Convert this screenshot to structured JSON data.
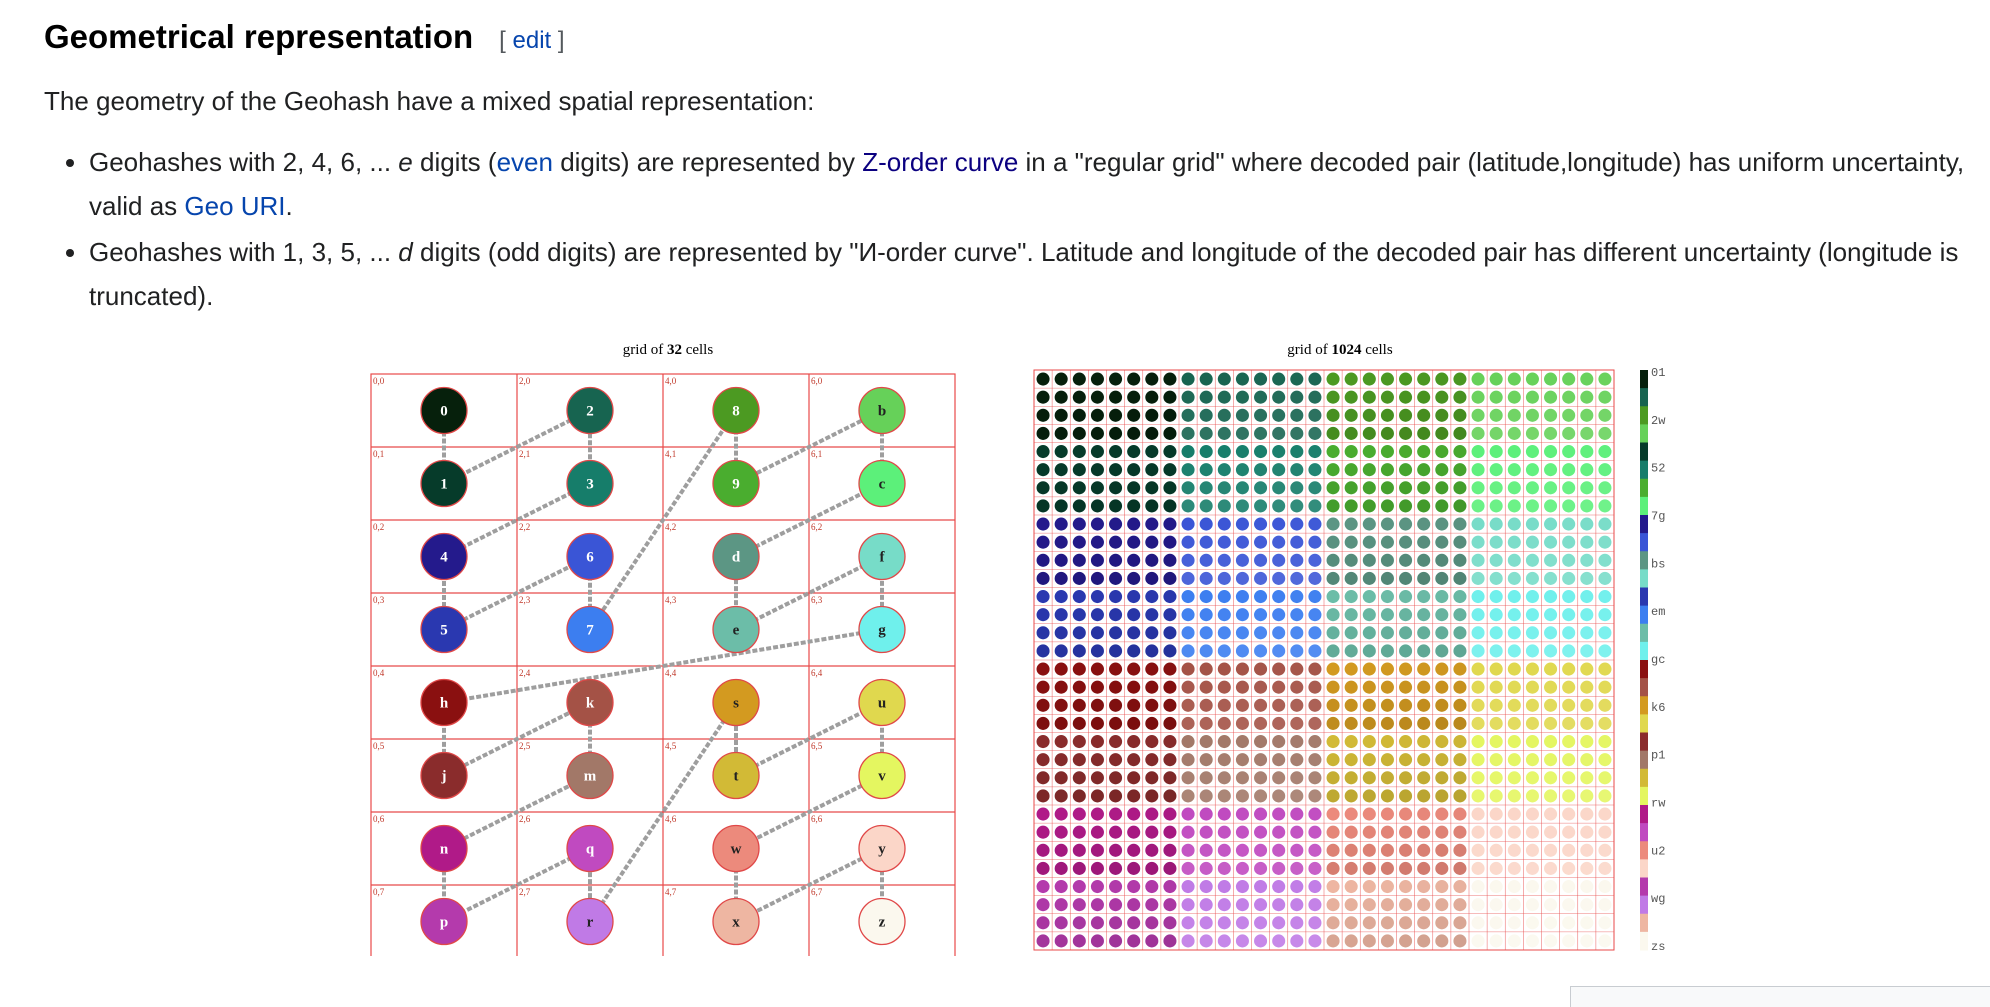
{
  "heading": {
    "title": "Geometrical representation",
    "edit_open": "[ ",
    "edit_label": "edit",
    "edit_close": " ]"
  },
  "intro": "The geometry of the Geohash have a mixed spatial representation:",
  "bullets": [
    {
      "t1": "Geohashes with 2, 4, 6, ... ",
      "em": "e",
      "t2": " digits (",
      "link1": "even",
      "t3": " digits) are represented by ",
      "link2": "Z-order curve",
      "t4": " in a \"regular grid\" where decoded pair (latitude,longitude) has uniform uncertainty, valid as ",
      "link3": "Geo URI",
      "t5": "."
    },
    {
      "t1": "Geohashes with 1, 3, 5, ... ",
      "em": "d",
      "t2": " digits (odd digits) are represented by \"И-order curve\". Latitude and longitude of the decoded pair has different uncertainty (longitude is truncated)."
    }
  ],
  "figure_left": {
    "title_pre": "grid of ",
    "title_bold": "32",
    "title_post": " cells",
    "cells": [
      {
        "label": "0",
        "coord": "0,0",
        "color": "#06200c"
      },
      {
        "label": "2",
        "coord": "2,0",
        "color": "#176450"
      },
      {
        "label": "8",
        "coord": "4,0",
        "color": "#4c9a22"
      },
      {
        "label": "b",
        "coord": "6,0",
        "color": "#66d159"
      },
      {
        "label": "1",
        "coord": "0,1",
        "color": "#063b2a"
      },
      {
        "label": "3",
        "coord": "2,1",
        "color": "#167d6a"
      },
      {
        "label": "9",
        "coord": "4,1",
        "color": "#4aad2f"
      },
      {
        "label": "c",
        "coord": "6,1",
        "color": "#5cf07a"
      },
      {
        "label": "4",
        "coord": "0,2",
        "color": "#241a8c"
      },
      {
        "label": "6",
        "coord": "2,2",
        "color": "#3a55d6"
      },
      {
        "label": "d",
        "coord": "4,2",
        "color": "#5c9684"
      },
      {
        "label": "f",
        "coord": "6,2",
        "color": "#77dcc8"
      },
      {
        "label": "5",
        "coord": "0,3",
        "color": "#2a38b0"
      },
      {
        "label": "7",
        "coord": "2,3",
        "color": "#3c7ef0"
      },
      {
        "label": "e",
        "coord": "4,3",
        "color": "#6cbda8"
      },
      {
        "label": "g",
        "coord": "6,3",
        "color": "#6ff0ec"
      },
      {
        "label": "h",
        "coord": "0,4",
        "color": "#8a1010"
      },
      {
        "label": "k",
        "coord": "2,4",
        "color": "#a45246"
      },
      {
        "label": "s",
        "coord": "4,4",
        "color": "#d39a20"
      },
      {
        "label": "u",
        "coord": "6,4",
        "color": "#e0d84e"
      },
      {
        "label": "j",
        "coord": "0,5",
        "color": "#8a2c2c"
      },
      {
        "label": "m",
        "coord": "2,5",
        "color": "#a27868"
      },
      {
        "label": "t",
        "coord": "4,5",
        "color": "#d2ba36"
      },
      {
        "label": "v",
        "coord": "6,5",
        "color": "#e4f660"
      },
      {
        "label": "n",
        "coord": "0,6",
        "color": "#b01a88"
      },
      {
        "label": "q",
        "coord": "2,6",
        "color": "#c04ac0"
      },
      {
        "label": "w",
        "coord": "4,6",
        "color": "#ec8a7c"
      },
      {
        "label": "y",
        "coord": "6,6",
        "color": "#fbd6c8"
      },
      {
        "label": "p",
        "coord": "0,7",
        "color": "#b43aac"
      },
      {
        "label": "r",
        "coord": "2,7",
        "color": "#c07ae6"
      },
      {
        "label": "x",
        "coord": "4,7",
        "color": "#eeb6a2"
      },
      {
        "label": "z",
        "coord": "6,7",
        "color": "#fbf8ee"
      }
    ]
  },
  "figure_right": {
    "title_pre": "grid of ",
    "title_bold": "1024",
    "title_post": " cells",
    "legend_labels": [
      "01",
      "2w",
      "52",
      "7g",
      "bs",
      "em",
      "gc",
      "k6",
      "p1",
      "rw",
      "u2",
      "wg",
      "zs"
    ]
  },
  "colors": {
    "grid_line": "#e84a4a",
    "curve": "#9e9e9e",
    "link": "#0645ad",
    "link_visited": "#0b0080"
  }
}
